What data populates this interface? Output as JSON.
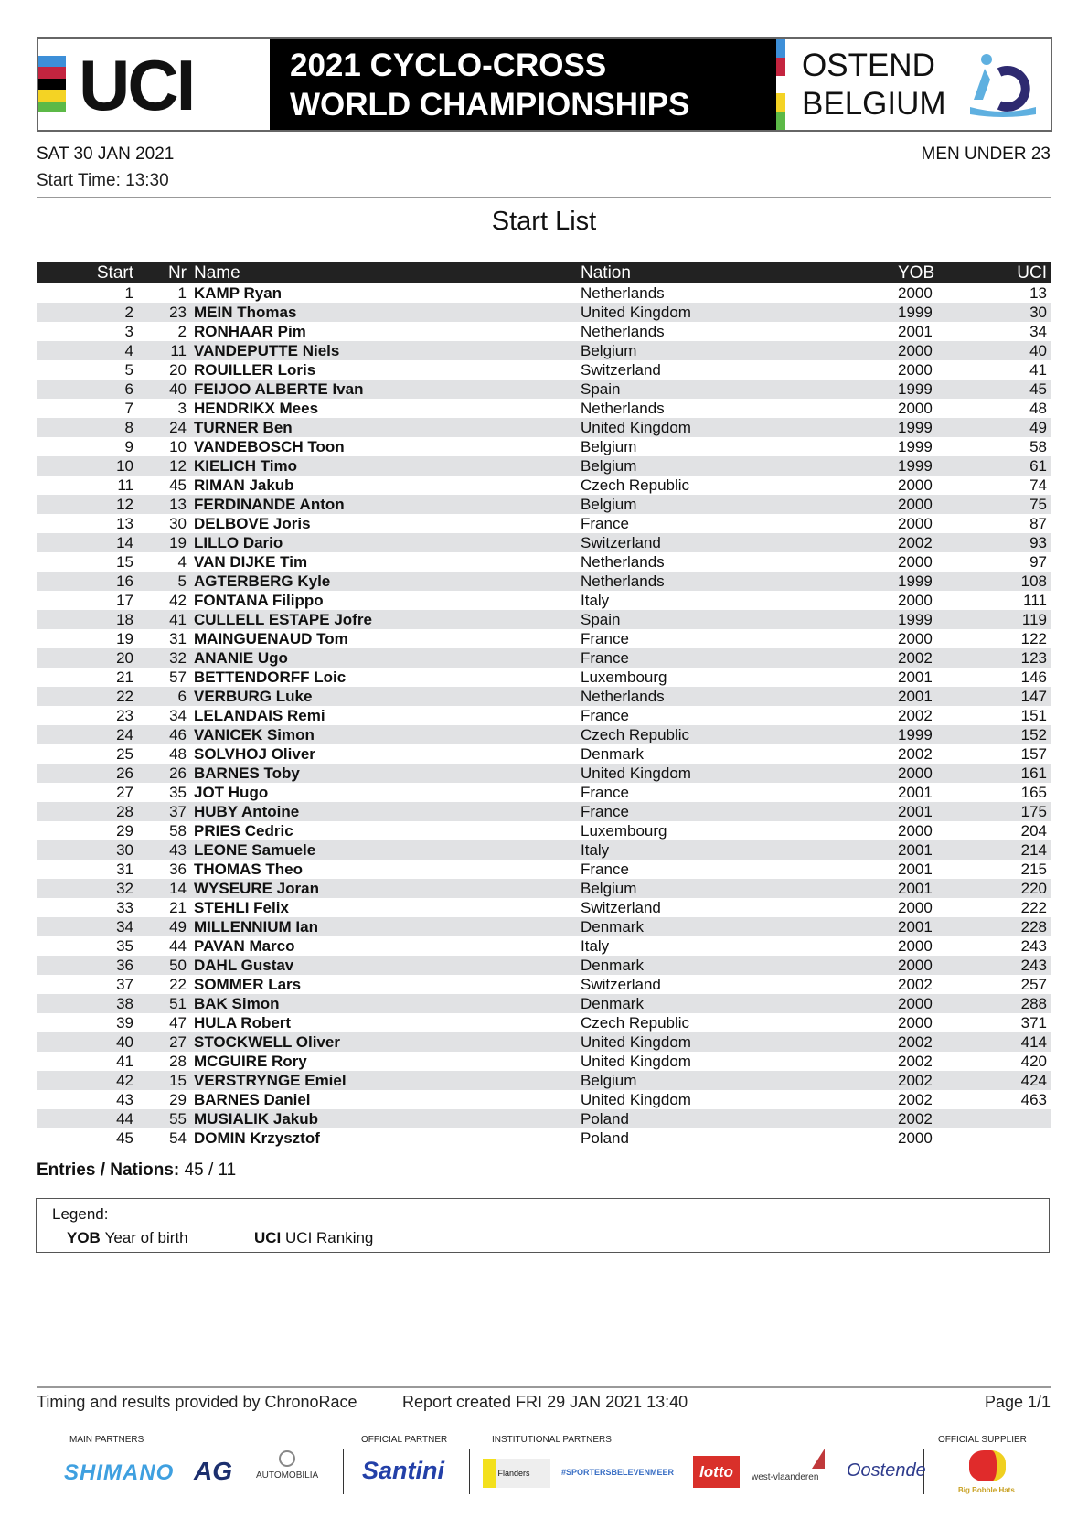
{
  "banner": {
    "logo_text": "UCI",
    "line1": "2021 CYCLO-CROSS",
    "line2": "WORLD CHAMPIONSHIPS",
    "city": "OSTEND",
    "country": "BELGIUM",
    "rainbow_colors": [
      "#3d8fd8",
      "#c4243f",
      "#000000",
      "#f4d324",
      "#5cb947"
    ]
  },
  "header": {
    "date": "SAT 30 JAN 2021",
    "category": "MEN UNDER 23",
    "start_time": "Start Time: 13:30",
    "title": "Start List"
  },
  "table": {
    "columns": {
      "start": "Start",
      "nr": "Nr",
      "name": "Name",
      "nation": "Nation",
      "yob": "YOB",
      "uci": "UCI"
    },
    "rows": [
      {
        "start": "1",
        "nr": "1",
        "name": "KAMP Ryan",
        "nation": "Netherlands",
        "yob": "2000",
        "uci": "13"
      },
      {
        "start": "2",
        "nr": "23",
        "name": "MEIN Thomas",
        "nation": "United Kingdom",
        "yob": "1999",
        "uci": "30"
      },
      {
        "start": "3",
        "nr": "2",
        "name": "RONHAAR Pim",
        "nation": "Netherlands",
        "yob": "2001",
        "uci": "34"
      },
      {
        "start": "4",
        "nr": "11",
        "name": "VANDEPUTTE Niels",
        "nation": "Belgium",
        "yob": "2000",
        "uci": "40"
      },
      {
        "start": "5",
        "nr": "20",
        "name": "ROUILLER Loris",
        "nation": "Switzerland",
        "yob": "2000",
        "uci": "41"
      },
      {
        "start": "6",
        "nr": "40",
        "name": "FEIJOO ALBERTE Ivan",
        "nation": "Spain",
        "yob": "1999",
        "uci": "45"
      },
      {
        "start": "7",
        "nr": "3",
        "name": "HENDRIKX Mees",
        "nation": "Netherlands",
        "yob": "2000",
        "uci": "48"
      },
      {
        "start": "8",
        "nr": "24",
        "name": "TURNER Ben",
        "nation": "United Kingdom",
        "yob": "1999",
        "uci": "49"
      },
      {
        "start": "9",
        "nr": "10",
        "name": "VANDEBOSCH Toon",
        "nation": "Belgium",
        "yob": "1999",
        "uci": "58"
      },
      {
        "start": "10",
        "nr": "12",
        "name": "KIELICH Timo",
        "nation": "Belgium",
        "yob": "1999",
        "uci": "61"
      },
      {
        "start": "11",
        "nr": "45",
        "name": "RIMAN Jakub",
        "nation": "Czech Republic",
        "yob": "2000",
        "uci": "74"
      },
      {
        "start": "12",
        "nr": "13",
        "name": "FERDINANDE Anton",
        "nation": "Belgium",
        "yob": "2000",
        "uci": "75"
      },
      {
        "start": "13",
        "nr": "30",
        "name": "DELBOVE Joris",
        "nation": "France",
        "yob": "2000",
        "uci": "87"
      },
      {
        "start": "14",
        "nr": "19",
        "name": "LILLO Dario",
        "nation": "Switzerland",
        "yob": "2002",
        "uci": "93"
      },
      {
        "start": "15",
        "nr": "4",
        "name": "VAN DIJKE Tim",
        "nation": "Netherlands",
        "yob": "2000",
        "uci": "97"
      },
      {
        "start": "16",
        "nr": "5",
        "name": "AGTERBERG Kyle",
        "nation": "Netherlands",
        "yob": "1999",
        "uci": "108"
      },
      {
        "start": "17",
        "nr": "42",
        "name": "FONTANA Filippo",
        "nation": "Italy",
        "yob": "2000",
        "uci": "111"
      },
      {
        "start": "18",
        "nr": "41",
        "name": "CULLELL ESTAPE Jofre",
        "nation": "Spain",
        "yob": "1999",
        "uci": "119"
      },
      {
        "start": "19",
        "nr": "31",
        "name": "MAINGUENAUD Tom",
        "nation": "France",
        "yob": "2000",
        "uci": "122"
      },
      {
        "start": "20",
        "nr": "32",
        "name": "ANANIE Ugo",
        "nation": "France",
        "yob": "2002",
        "uci": "123"
      },
      {
        "start": "21",
        "nr": "57",
        "name": "BETTENDORFF Loic",
        "nation": "Luxembourg",
        "yob": "2001",
        "uci": "146"
      },
      {
        "start": "22",
        "nr": "6",
        "name": "VERBURG Luke",
        "nation": "Netherlands",
        "yob": "2001",
        "uci": "147"
      },
      {
        "start": "23",
        "nr": "34",
        "name": "LELANDAIS Remi",
        "nation": "France",
        "yob": "2002",
        "uci": "151"
      },
      {
        "start": "24",
        "nr": "46",
        "name": "VANICEK Simon",
        "nation": "Czech Republic",
        "yob": "1999",
        "uci": "152"
      },
      {
        "start": "25",
        "nr": "48",
        "name": "SOLVHOJ Oliver",
        "nation": "Denmark",
        "yob": "2002",
        "uci": "157"
      },
      {
        "start": "26",
        "nr": "26",
        "name": "BARNES Toby",
        "nation": "United Kingdom",
        "yob": "2000",
        "uci": "161"
      },
      {
        "start": "27",
        "nr": "35",
        "name": "JOT Hugo",
        "nation": "France",
        "yob": "2001",
        "uci": "165"
      },
      {
        "start": "28",
        "nr": "37",
        "name": "HUBY Antoine",
        "nation": "France",
        "yob": "2001",
        "uci": "175"
      },
      {
        "start": "29",
        "nr": "58",
        "name": "PRIES Cedric",
        "nation": "Luxembourg",
        "yob": "2000",
        "uci": "204"
      },
      {
        "start": "30",
        "nr": "43",
        "name": "LEONE Samuele",
        "nation": "Italy",
        "yob": "2001",
        "uci": "214"
      },
      {
        "start": "31",
        "nr": "36",
        "name": "THOMAS Theo",
        "nation": "France",
        "yob": "2001",
        "uci": "215"
      },
      {
        "start": "32",
        "nr": "14",
        "name": "WYSEURE Joran",
        "nation": "Belgium",
        "yob": "2001",
        "uci": "220"
      },
      {
        "start": "33",
        "nr": "21",
        "name": "STEHLI Felix",
        "nation": "Switzerland",
        "yob": "2000",
        "uci": "222"
      },
      {
        "start": "34",
        "nr": "49",
        "name": "MILLENNIUM Ian",
        "nation": "Denmark",
        "yob": "2001",
        "uci": "228"
      },
      {
        "start": "35",
        "nr": "44",
        "name": "PAVAN Marco",
        "nation": "Italy",
        "yob": "2000",
        "uci": "243"
      },
      {
        "start": "36",
        "nr": "50",
        "name": "DAHL Gustav",
        "nation": "Denmark",
        "yob": "2000",
        "uci": "243"
      },
      {
        "start": "37",
        "nr": "22",
        "name": "SOMMER Lars",
        "nation": "Switzerland",
        "yob": "2002",
        "uci": "257"
      },
      {
        "start": "38",
        "nr": "51",
        "name": "BAK Simon",
        "nation": "Denmark",
        "yob": "2000",
        "uci": "288"
      },
      {
        "start": "39",
        "nr": "47",
        "name": "HULA Robert",
        "nation": "Czech Republic",
        "yob": "2000",
        "uci": "371"
      },
      {
        "start": "40",
        "nr": "27",
        "name": "STOCKWELL Oliver",
        "nation": "United Kingdom",
        "yob": "2002",
        "uci": "414"
      },
      {
        "start": "41",
        "nr": "28",
        "name": "MCGUIRE Rory",
        "nation": "United Kingdom",
        "yob": "2002",
        "uci": "420"
      },
      {
        "start": "42",
        "nr": "15",
        "name": "VERSTRYNGE Emiel",
        "nation": "Belgium",
        "yob": "2002",
        "uci": "424"
      },
      {
        "start": "43",
        "nr": "29",
        "name": "BARNES Daniel",
        "nation": "United Kingdom",
        "yob": "2002",
        "uci": "463"
      },
      {
        "start": "44",
        "nr": "55",
        "name": "MUSIALIK Jakub",
        "nation": "Poland",
        "yob": "2002",
        "uci": ""
      },
      {
        "start": "45",
        "nr": "54",
        "name": "DOMIN Krzysztof",
        "nation": "Poland",
        "yob": "2000",
        "uci": ""
      }
    ]
  },
  "summary": {
    "label": "Entries / Nations:",
    "value": "45 / 11"
  },
  "legend": {
    "title": "Legend:",
    "items": [
      {
        "key": "YOB",
        "text": "Year of birth"
      },
      {
        "key": "UCI",
        "text": "UCI Ranking"
      }
    ]
  },
  "footer": {
    "timing": "Timing and results provided by ChronoRace",
    "report": "Report created FRI 29 JAN 2021 13:40",
    "page": "Page 1/1"
  },
  "partners": {
    "main_label": "MAIN PARTNERS",
    "official_label": "OFFICIAL PARTNER",
    "institutional_label": "INSTITUTIONAL PARTNERS",
    "supplier_label": "OFFICIAL SUPPLIER",
    "main": [
      "SHIMANO",
      "AG",
      "AUTOMOBILIA"
    ],
    "official": [
      "Santini"
    ],
    "institutional": [
      "Flanders",
      "#SPORTERSBELEVENMEER",
      "lotto",
      "west-vlaanderen",
      "Oostende"
    ],
    "supplier": [
      "Big Bobble Hats"
    ]
  }
}
